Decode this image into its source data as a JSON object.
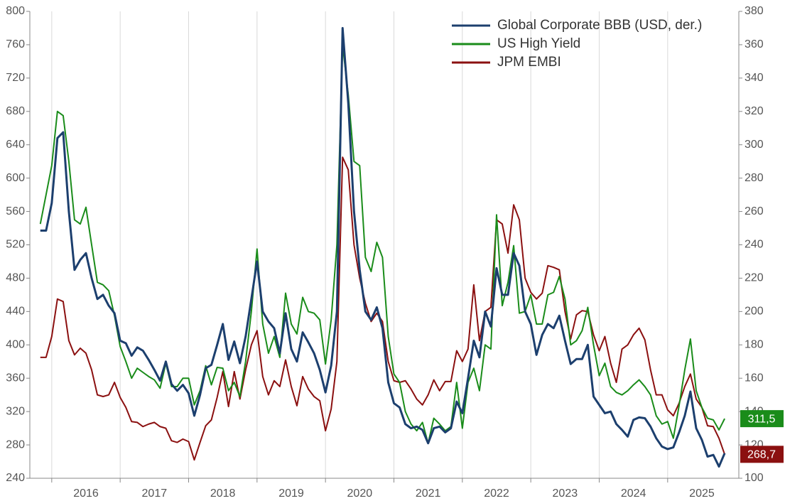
{
  "chart_data": {
    "type": "line",
    "x": [
      2015.833,
      2015.917,
      2016.0,
      2016.083,
      2016.167,
      2016.25,
      2016.333,
      2016.417,
      2016.5,
      2016.583,
      2016.667,
      2016.75,
      2016.833,
      2016.917,
      2017.0,
      2017.083,
      2017.167,
      2017.25,
      2017.333,
      2017.417,
      2017.5,
      2017.583,
      2017.667,
      2017.75,
      2017.833,
      2017.917,
      2018.0,
      2018.083,
      2018.167,
      2018.25,
      2018.333,
      2018.417,
      2018.5,
      2018.583,
      2018.667,
      2018.75,
      2018.833,
      2018.917,
      2019.0,
      2019.083,
      2019.167,
      2019.25,
      2019.333,
      2019.417,
      2019.5,
      2019.583,
      2019.667,
      2019.75,
      2019.833,
      2019.917,
      2020.0,
      2020.083,
      2020.167,
      2020.25,
      2020.333,
      2020.417,
      2020.5,
      2020.583,
      2020.667,
      2020.75,
      2020.833,
      2020.917,
      2021.0,
      2021.083,
      2021.167,
      2021.25,
      2021.333,
      2021.417,
      2021.5,
      2021.583,
      2021.667,
      2021.75,
      2021.833,
      2021.917,
      2022.0,
      2022.083,
      2022.167,
      2022.25,
      2022.333,
      2022.417,
      2022.5,
      2022.583,
      2022.667,
      2022.75,
      2022.833,
      2022.917,
      2023.0,
      2023.083,
      2023.167,
      2023.25,
      2023.333,
      2023.417,
      2023.5,
      2023.583,
      2023.667,
      2023.75,
      2023.833,
      2023.917,
      2024.0,
      2024.083,
      2024.167,
      2024.25,
      2024.333,
      2024.417,
      2024.5,
      2024.583,
      2024.667,
      2024.75,
      2024.833,
      2024.917,
      2025.0,
      2025.083,
      2025.167,
      2025.25,
      2025.333,
      2025.417,
      2025.5,
      2025.583,
      2025.667,
      2025.75,
      2025.833
    ],
    "xlim": [
      2015.68,
      2026.04
    ],
    "xticks": [
      2016,
      2017,
      2018,
      2019,
      2020,
      2021,
      2022,
      2023,
      2024,
      2025
    ],
    "ylim": [
      240,
      800
    ],
    "yticks": [
      240,
      280,
      320,
      360,
      400,
      440,
      480,
      520,
      560,
      600,
      640,
      680,
      720,
      760,
      800
    ],
    "y2lim": [
      100,
      380
    ],
    "y2ticks": [
      100,
      120,
      140,
      160,
      180,
      200,
      220,
      240,
      260,
      280,
      300,
      320,
      340,
      360,
      380
    ],
    "grid": "x",
    "legend": "upper right",
    "series": [
      {
        "name": "Global Corporate BBB (USD, der.)",
        "color": "#1c3f6e",
        "axis": "y2",
        "values": [
          248.5,
          248.5,
          265,
          304,
          307.5,
          260,
          225,
          231,
          235,
          220,
          207.5,
          210,
          203.5,
          199,
          182.5,
          181,
          173.5,
          178.5,
          176.5,
          171,
          165,
          158.5,
          170,
          156.5,
          152.5,
          156,
          151,
          137.5,
          150,
          166,
          168,
          180,
          192.5,
          171,
          182,
          169,
          185,
          207.5,
          230,
          200,
          194,
          190,
          175,
          199,
          177.5,
          170,
          187.5,
          181.5,
          175,
          165,
          151.5,
          167.5,
          200,
          370,
          325,
          260,
          225,
          200,
          195,
          202.5,
          190,
          157.5,
          145,
          142.5,
          132.5,
          130,
          131,
          129,
          121,
          130,
          131,
          127.5,
          130,
          146,
          139,
          160,
          182.5,
          172.5,
          200,
          191,
          226,
          210,
          210,
          235,
          227.5,
          200,
          192.5,
          174,
          186,
          192.5,
          190,
          197.5,
          182.5,
          168.5,
          171.5,
          171.5,
          180,
          149,
          144,
          139,
          140,
          132.5,
          129,
          125,
          135,
          136.5,
          136,
          131,
          124,
          119,
          117.5,
          118.5,
          127.5,
          137.5,
          152,
          130,
          123,
          113,
          114,
          107,
          115
        ]
      },
      {
        "name": "US High Yield",
        "color": "#1a8c1a",
        "values": [
          545,
          580,
          615,
          680,
          675,
          620,
          550,
          545,
          565,
          520,
          475,
          472,
          465,
          435,
          398,
          380,
          360,
          372,
          367,
          362,
          358,
          348,
          378,
          350,
          350,
          360,
          360,
          328,
          345,
          375,
          352,
          373,
          372,
          345,
          355,
          338,
          380,
          440,
          515,
          425,
          390,
          410,
          385,
          462,
          425,
          413,
          457,
          440,
          438,
          430,
          377,
          430,
          520,
          760,
          700,
          620,
          615,
          505,
          488,
          523,
          505,
          410,
          365,
          355,
          320,
          305,
          297,
          307,
          282,
          312,
          305,
          297,
          302,
          355,
          300,
          355,
          372,
          345,
          400,
          395,
          556,
          447,
          475,
          519,
          438,
          440,
          460,
          425,
          425,
          460,
          463,
          482,
          455,
          400,
          405,
          417,
          445,
          400,
          363,
          378,
          350,
          343,
          340,
          345,
          352,
          358,
          350,
          340,
          315,
          305,
          308,
          288,
          327,
          370,
          407,
          345,
          325,
          312,
          310,
          298,
          311.5
        ],
        "value_labels": [
          null,
          null,
          null,
          null,
          null,
          null,
          null,
          null,
          null,
          null,
          null,
          null,
          null,
          null,
          null,
          null,
          null,
          null,
          null,
          null,
          null,
          null,
          null,
          null,
          null,
          null,
          null,
          null,
          null,
          null,
          null,
          null,
          null,
          null,
          null,
          null,
          null,
          null,
          null,
          null,
          null,
          null,
          null,
          null,
          null,
          null,
          null,
          null,
          null,
          null,
          null,
          null,
          null,
          null,
          null,
          null,
          null,
          null,
          null,
          null,
          null,
          null,
          null,
          null,
          null,
          null,
          null,
          null,
          null,
          null,
          null,
          null,
          null,
          null,
          null,
          null,
          null,
          null,
          null,
          null,
          null,
          null,
          null,
          null,
          null,
          null,
          null,
          null,
          null,
          null,
          null,
          null,
          null,
          null,
          null,
          null,
          null,
          null,
          null,
          null,
          null,
          null,
          null,
          null,
          null,
          null,
          null,
          null,
          null,
          null,
          null,
          null,
          null,
          null,
          null,
          null,
          null,
          null,
          null,
          null,
          "311,5"
        ]
      },
      {
        "name": "JPM EMBI",
        "color": "#8b1010",
        "values": [
          385,
          385,
          410,
          455,
          452,
          405,
          388,
          396,
          390,
          370,
          340,
          338,
          340,
          355,
          337,
          325,
          308,
          307,
          302,
          305,
          307,
          302,
          300,
          285,
          283,
          287,
          284,
          262,
          283,
          303,
          310,
          337,
          368,
          326,
          368,
          335,
          370,
          400,
          417,
          362,
          340,
          357,
          350,
          382,
          350,
          327,
          362,
          347,
          338,
          333,
          297,
          323,
          380,
          625,
          610,
          520,
          480,
          450,
          428,
          438,
          428,
          380,
          357,
          355,
          357,
          347,
          335,
          328,
          340,
          358,
          345,
          356,
          356,
          393,
          380,
          395,
          472,
          405,
          440,
          445,
          550,
          545,
          510,
          568,
          550,
          480,
          463,
          455,
          462,
          495,
          493,
          490,
          440,
          407,
          436,
          441,
          440,
          412,
          393,
          410,
          378,
          355,
          395,
          400,
          412,
          420,
          406,
          370,
          340,
          340,
          322,
          315,
          330,
          350,
          365,
          335,
          325,
          303,
          302,
          288,
          268.7
        ],
        "value_labels": [
          null,
          null,
          null,
          null,
          null,
          null,
          null,
          null,
          null,
          null,
          null,
          null,
          null,
          null,
          null,
          null,
          null,
          null,
          null,
          null,
          null,
          null,
          null,
          null,
          null,
          null,
          null,
          null,
          null,
          null,
          null,
          null,
          null,
          null,
          null,
          null,
          null,
          null,
          null,
          null,
          null,
          null,
          null,
          null,
          null,
          null,
          null,
          null,
          null,
          null,
          null,
          null,
          null,
          null,
          null,
          null,
          null,
          null,
          null,
          null,
          null,
          null,
          null,
          null,
          null,
          null,
          null,
          null,
          null,
          null,
          null,
          null,
          null,
          null,
          null,
          null,
          null,
          null,
          null,
          null,
          null,
          null,
          null,
          null,
          null,
          null,
          null,
          null,
          null,
          null,
          null,
          null,
          null,
          null,
          null,
          null,
          null,
          null,
          null,
          null,
          null,
          null,
          null,
          null,
          null,
          null,
          null,
          null,
          null,
          null,
          null,
          null,
          null,
          null,
          null,
          null,
          null,
          null,
          null,
          null,
          "268,7"
        ]
      }
    ]
  }
}
